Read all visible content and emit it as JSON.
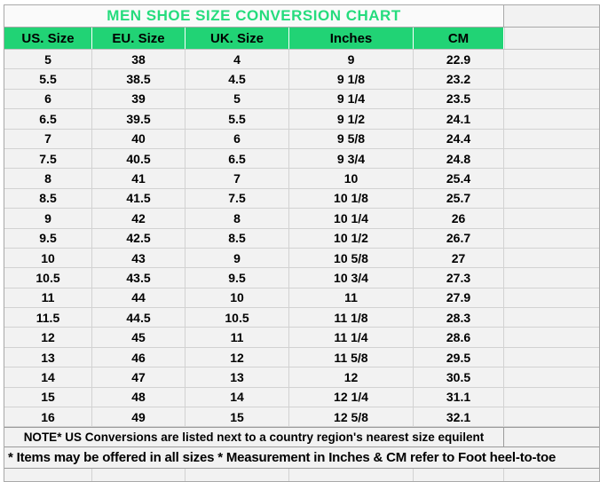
{
  "chart_data": {
    "type": "table",
    "title": "MEN SHOE SIZE CONVERSION CHART",
    "columns": [
      "US. Size",
      "EU. Size",
      "UK. Size",
      "Inches",
      "CM"
    ],
    "rows": [
      [
        "5",
        "38",
        "4",
        "9",
        "22.9"
      ],
      [
        "5.5",
        "38.5",
        "4.5",
        "9 1/8",
        "23.2"
      ],
      [
        "6",
        "39",
        "5",
        "9 1/4",
        "23.5"
      ],
      [
        "6.5",
        "39.5",
        "5.5",
        "9 1/2",
        "24.1"
      ],
      [
        "7",
        "40",
        "6",
        "9 5/8",
        "24.4"
      ],
      [
        "7.5",
        "40.5",
        "6.5",
        "9 3/4",
        "24.8"
      ],
      [
        "8",
        "41",
        "7",
        "10",
        "25.4"
      ],
      [
        "8.5",
        "41.5",
        "7.5",
        "10 1/8",
        "25.7"
      ],
      [
        "9",
        "42",
        "8",
        "10 1/4",
        "26"
      ],
      [
        "9.5",
        "42.5",
        "8.5",
        "10 1/2",
        "26.7"
      ],
      [
        "10",
        "43",
        "9",
        "10 5/8",
        "27"
      ],
      [
        "10.5",
        "43.5",
        "9.5",
        "10 3/4",
        "27.3"
      ],
      [
        "11",
        "44",
        "10",
        "11",
        "27.9"
      ],
      [
        "11.5",
        "44.5",
        "10.5",
        "11 1/8",
        "28.3"
      ],
      [
        "12",
        "45",
        "11",
        "11 1/4",
        "28.6"
      ],
      [
        "13",
        "46",
        "12",
        "11 5/8",
        "29.5"
      ],
      [
        "14",
        "47",
        "13",
        "12",
        "30.5"
      ],
      [
        "15",
        "48",
        "14",
        "12 1/4",
        "31.1"
      ],
      [
        "16",
        "49",
        "15",
        "12 5/8",
        "32.1"
      ]
    ],
    "notes": [
      "NOTE* US Conversions are listed next to a country region's nearest size equilent",
      "* Items may be offered in all sizes * Measurement in Inches & CM refer to Foot heel-to-toe"
    ]
  },
  "colors": {
    "header_bg": "#21d375",
    "title_text": "#25dc7d",
    "cell_bg": "#f2f2f2",
    "grid_line": "#d2d2d2",
    "outline": "#a9a9a9",
    "text": "#000000"
  }
}
